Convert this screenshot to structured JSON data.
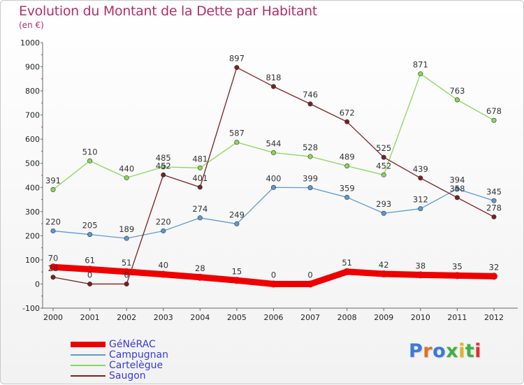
{
  "header": {
    "title": "Evolution du Montant de la Dette par Habitant",
    "subtitle": "(en €)"
  },
  "logo": {
    "text": "Proxiti",
    "colors": [
      "#3a7ad8",
      "#e07020",
      "#3a7ad8",
      "#40b040",
      "#e8b020",
      "#40b040",
      "#e03030"
    ]
  },
  "chart_data": {
    "type": "line",
    "x": [
      "2000",
      "2001",
      "2002",
      "2003",
      "2004",
      "2005",
      "2006",
      "2007",
      "2008",
      "2009",
      "2010",
      "2011",
      "2012"
    ],
    "ylim": [
      -100,
      1000
    ],
    "yticks": [
      "-100",
      "0",
      "100",
      "200",
      "300",
      "400",
      "500",
      "600",
      "700",
      "800",
      "900",
      "1000"
    ],
    "grid": false,
    "legend_position": "bottom-left",
    "series": [
      {
        "name": "GéNéRAC",
        "color": "#ee0000",
        "values": [
          70,
          61,
          51,
          40,
          28,
          15,
          0,
          0,
          51,
          42,
          38,
          35,
          32
        ],
        "labels": [
          "70",
          "61",
          "51",
          "40",
          "28",
          "15",
          "0",
          "0",
          "51",
          "42",
          "38",
          "35",
          "32"
        ]
      },
      {
        "name": "Campugnan",
        "color": "#5a9bd5",
        "values": [
          220,
          205,
          189,
          220,
          274,
          249,
          400,
          399,
          359,
          293,
          312,
          394,
          345
        ],
        "labels": [
          "220",
          "205",
          "189",
          "220",
          "274",
          "249",
          "400",
          "399",
          "359",
          "293",
          "312",
          "394",
          "345"
        ]
      },
      {
        "name": "Cartelègue",
        "color": "#88d85a",
        "values": [
          391,
          510,
          440,
          485,
          481,
          587,
          544,
          528,
          489,
          452,
          871,
          763,
          678
        ],
        "labels": [
          "391",
          "510",
          "440",
          "485",
          "481",
          "587",
          "544",
          "528",
          "489",
          "452",
          "871",
          "763",
          "678"
        ]
      },
      {
        "name": "Saugon",
        "color": "#7a2020",
        "values": [
          28,
          0,
          0,
          452,
          401,
          897,
          818,
          746,
          672,
          525,
          439,
          358,
          278
        ],
        "labels": [
          "28",
          "0",
          "0",
          "452",
          "401",
          "897",
          "818",
          "746",
          "672",
          "525",
          "439",
          "358",
          "278"
        ]
      }
    ]
  }
}
